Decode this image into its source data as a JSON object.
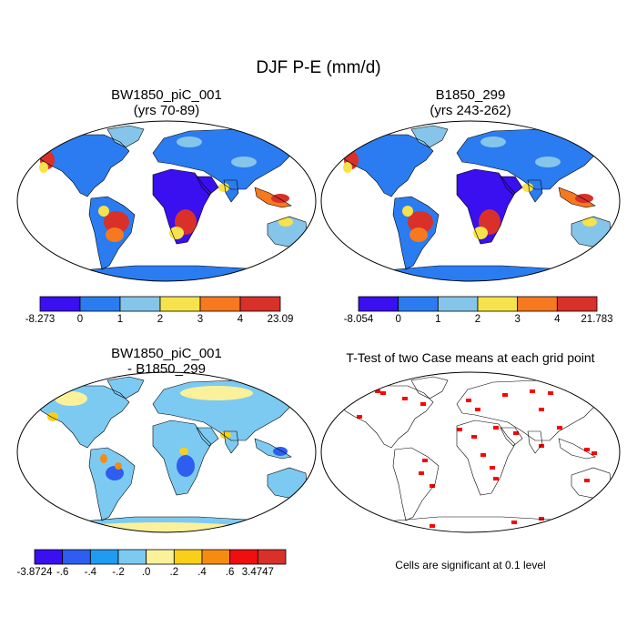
{
  "title": "DJF P-E (mm/d)",
  "panels": [
    {
      "id": "case1",
      "title_line1": "BW1850_piC_001",
      "title_line2": "(yrs 70-89)",
      "colorbar": {
        "colors": [
          "#3a0ff0",
          "#2b7cf0",
          "#86c5ea",
          "#f6e24a",
          "#f6781f",
          "#d9302a"
        ],
        "labels": [
          "-8.273",
          "0",
          "1",
          "2",
          "3",
          "4",
          "23.09"
        ]
      }
    },
    {
      "id": "case2",
      "title_line1": "B1850_299",
      "title_line2": "(yrs 243-262)",
      "colorbar": {
        "colors": [
          "#3a0ff0",
          "#2b7cf0",
          "#86c5ea",
          "#f6e24a",
          "#f6781f",
          "#d9302a"
        ],
        "labels": [
          "-8.054",
          "0",
          "1",
          "2",
          "3",
          "4",
          "21.783"
        ]
      }
    },
    {
      "id": "diff",
      "title_line1": "BW1850_piC_001",
      "title_line2": "- B1850_299",
      "colorbar": {
        "colors": [
          "#3a0ff0",
          "#2d5ef0",
          "#1f9bf2",
          "#7ccaf2",
          "#faf19a",
          "#f9cf1a",
          "#f58c12",
          "#f00f0f",
          "#d9302a"
        ],
        "labels": [
          "-3.8724",
          "-.6",
          "-.4",
          "-.2",
          ".0",
          ".2",
          ".4",
          ".6",
          "3.4747"
        ]
      }
    },
    {
      "id": "ttest",
      "title_line1": "T-Test of two Case means at each grid point",
      "note": "Cells are significant at 0.1 level",
      "color": "#ff0000"
    }
  ]
}
